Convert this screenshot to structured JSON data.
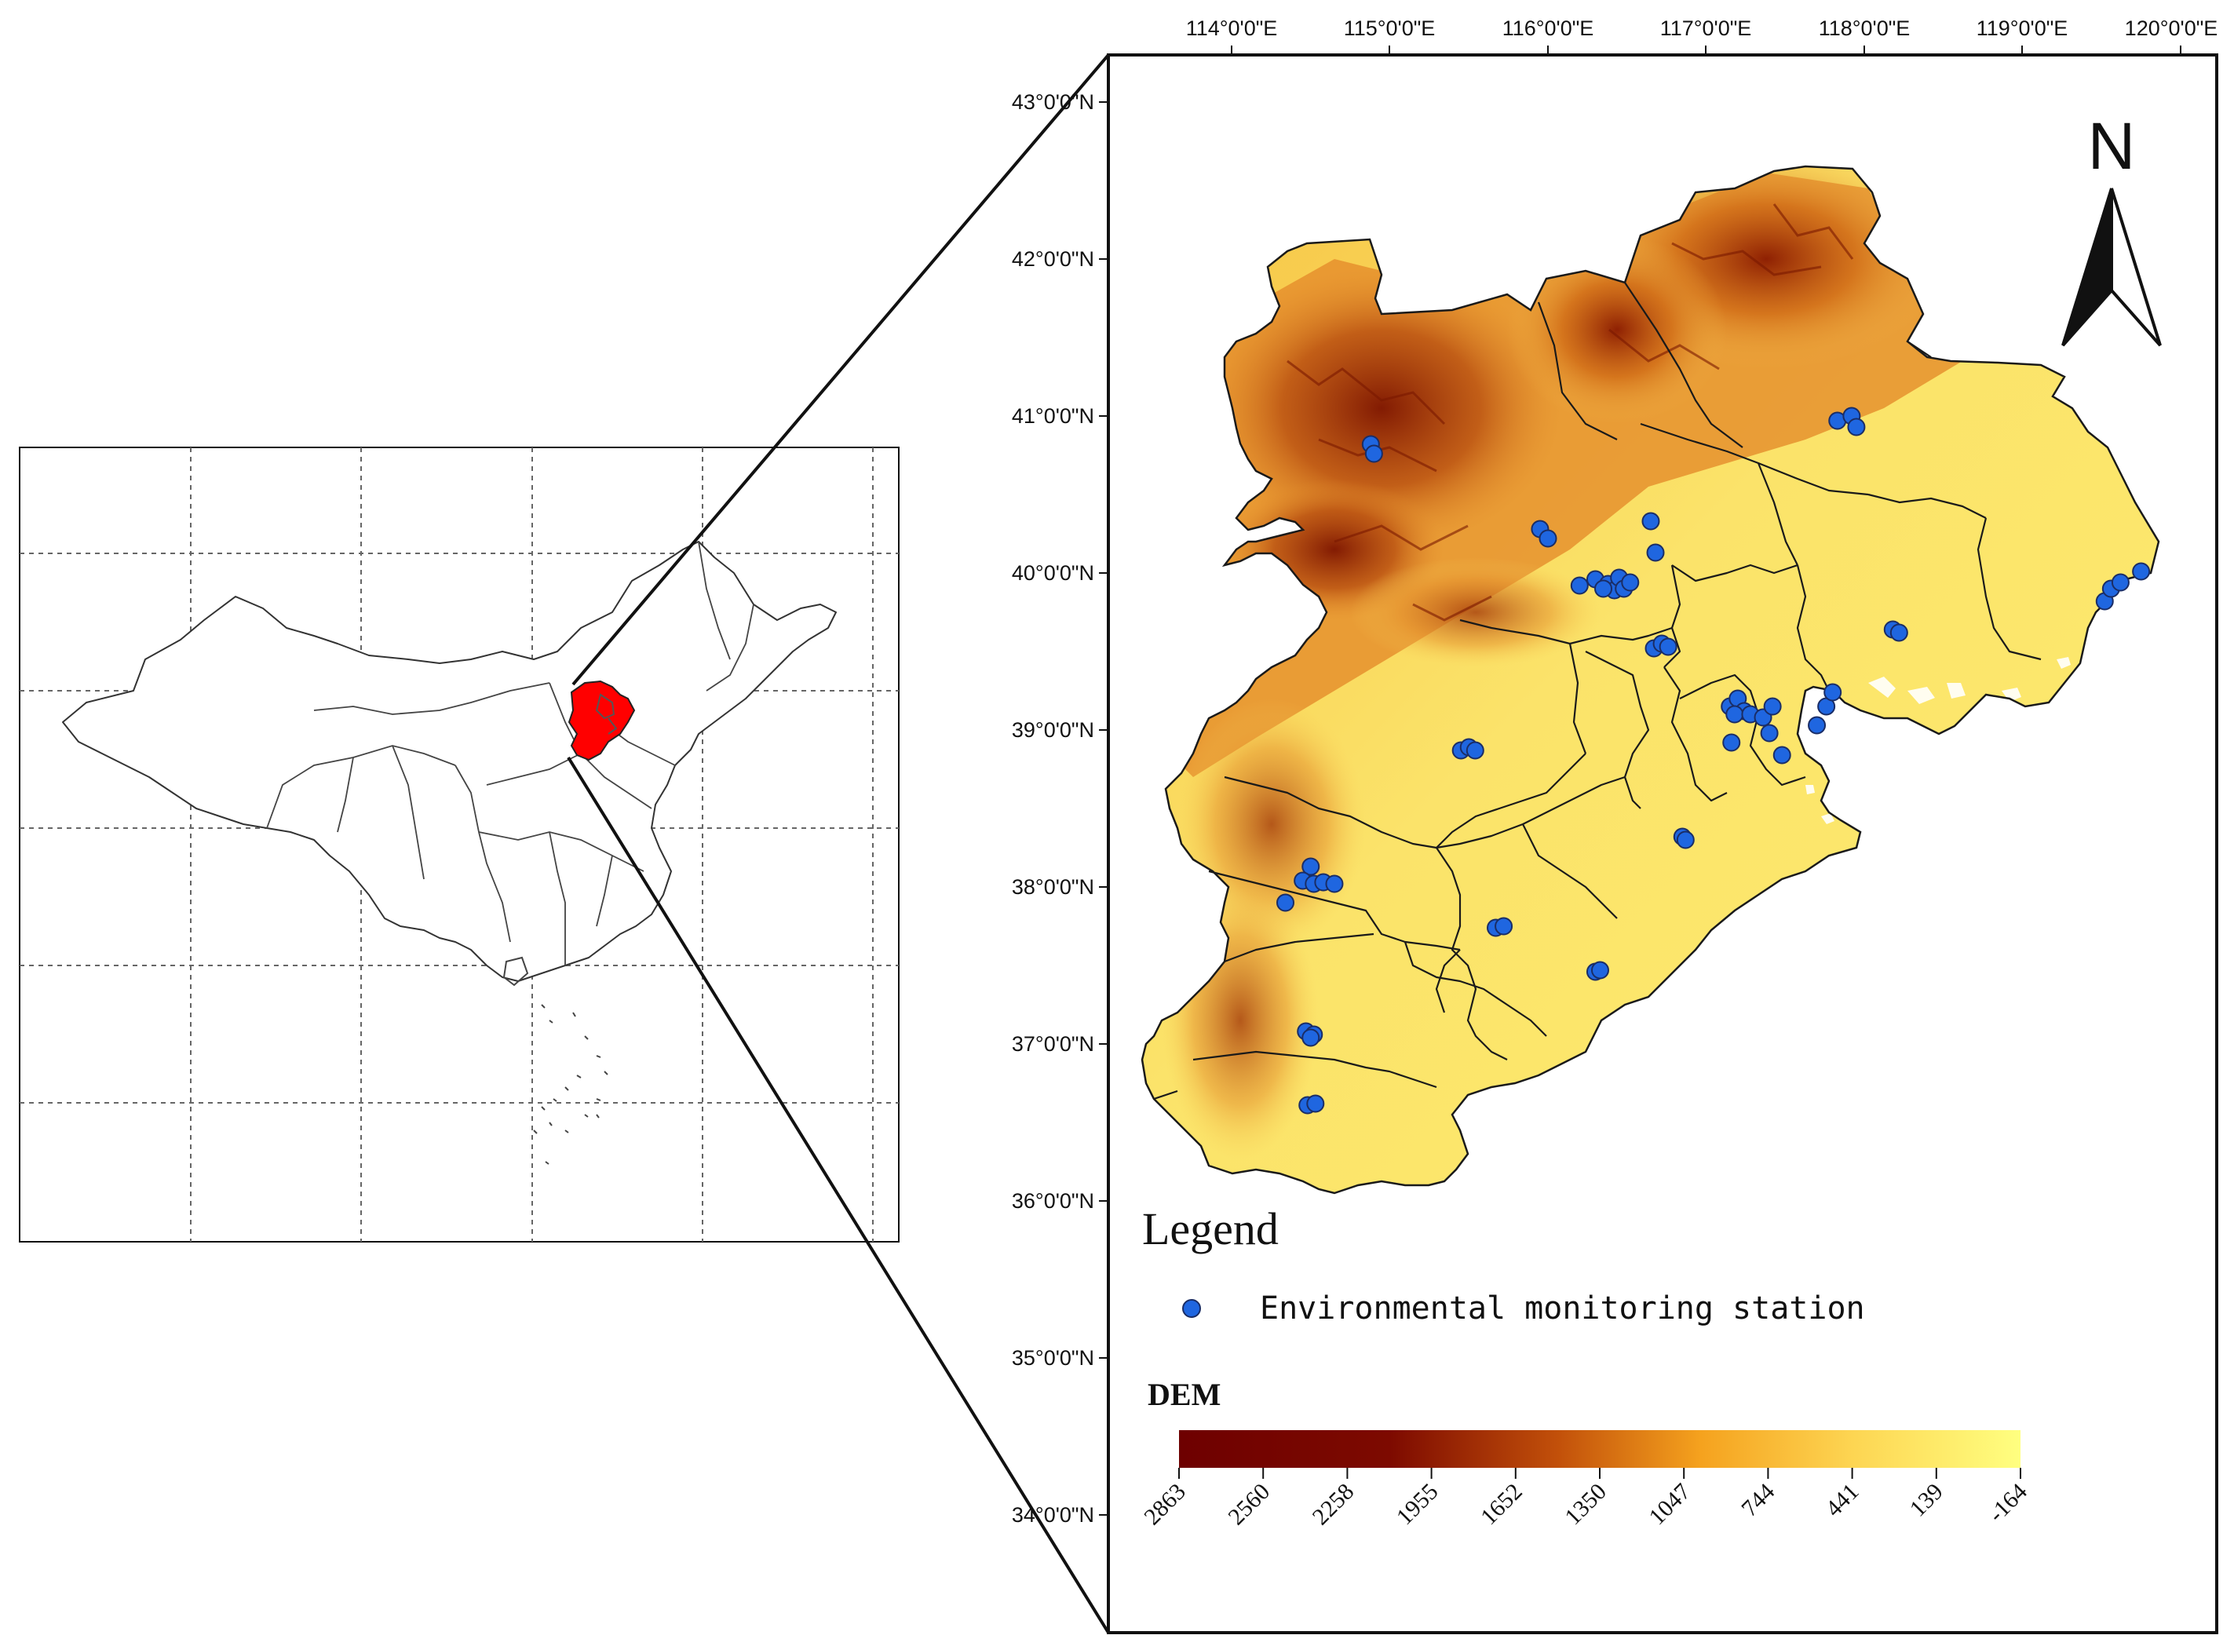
{
  "colors": {
    "region_fill_red": "#ff0000",
    "station_blue": "#1f66e0",
    "frame": "#111111",
    "dem_high": "#6e0000",
    "dem_mid": "#f5a21e",
    "dem_low": "#ffff80"
  },
  "icons": {
    "north_arrow": "north-arrow-icon",
    "station_marker": "station-dot-icon"
  },
  "detail_map": {
    "longitude_labels": [
      "114°0'0\"E",
      "115°0'0\"E",
      "116°0'0\"E",
      "117°0'0\"E",
      "118°0'0\"E",
      "119°0'0\"E",
      "120°0'0\"E"
    ],
    "latitude_labels": [
      "43°0'0\"N",
      "42°0'0\"N",
      "41°0'0\"N",
      "40°0'0\"N",
      "39°0'0\"N",
      "38°0'0\"N",
      "37°0'0\"N",
      "36°0'0\"N",
      "35°0'0\"N",
      "34°0'0\"N"
    ],
    "north_label": "N"
  },
  "legend": {
    "title": "Legend",
    "station_label": "Environmental monitoring station"
  },
  "dem": {
    "title": "DEM",
    "ticks": [
      "2863",
      "2560",
      "2258",
      "1955",
      "1652",
      "1350",
      "1047",
      "744",
      "441",
      "139",
      "-164"
    ]
  },
  "stations": [
    {
      "lon": 114.88,
      "lat": 40.82
    },
    {
      "lon": 114.9,
      "lat": 40.76
    },
    {
      "lon": 115.95,
      "lat": 40.28
    },
    {
      "lon": 116.0,
      "lat": 40.22
    },
    {
      "lon": 116.65,
      "lat": 40.33
    },
    {
      "lon": 116.68,
      "lat": 40.13
    },
    {
      "lon": 116.2,
      "lat": 39.92
    },
    {
      "lon": 116.3,
      "lat": 39.96
    },
    {
      "lon": 116.38,
      "lat": 39.93
    },
    {
      "lon": 116.42,
      "lat": 39.89
    },
    {
      "lon": 116.45,
      "lat": 39.97
    },
    {
      "lon": 116.48,
      "lat": 39.9
    },
    {
      "lon": 116.52,
      "lat": 39.94
    },
    {
      "lon": 116.35,
      "lat": 39.9
    },
    {
      "lon": 116.67,
      "lat": 39.52
    },
    {
      "lon": 116.72,
      "lat": 39.55
    },
    {
      "lon": 116.76,
      "lat": 39.53
    },
    {
      "lon": 117.83,
      "lat": 40.97
    },
    {
      "lon": 117.92,
      "lat": 41.0
    },
    {
      "lon": 117.95,
      "lat": 40.93
    },
    {
      "lon": 119.52,
      "lat": 39.82
    },
    {
      "lon": 119.56,
      "lat": 39.9
    },
    {
      "lon": 119.62,
      "lat": 39.94
    },
    {
      "lon": 119.75,
      "lat": 40.01
    },
    {
      "lon": 118.18,
      "lat": 39.64
    },
    {
      "lon": 118.22,
      "lat": 39.62
    },
    {
      "lon": 117.15,
      "lat": 39.15
    },
    {
      "lon": 117.2,
      "lat": 39.2
    },
    {
      "lon": 117.24,
      "lat": 39.12
    },
    {
      "lon": 117.18,
      "lat": 39.1
    },
    {
      "lon": 117.28,
      "lat": 39.1
    },
    {
      "lon": 117.36,
      "lat": 39.08
    },
    {
      "lon": 117.42,
      "lat": 39.15
    },
    {
      "lon": 117.4,
      "lat": 38.98
    },
    {
      "lon": 117.48,
      "lat": 38.84
    },
    {
      "lon": 117.7,
      "lat": 39.03
    },
    {
      "lon": 117.76,
      "lat": 39.15
    },
    {
      "lon": 117.8,
      "lat": 39.24
    },
    {
      "lon": 117.16,
      "lat": 38.92
    },
    {
      "lon": 115.45,
      "lat": 38.87
    },
    {
      "lon": 115.5,
      "lat": 38.89
    },
    {
      "lon": 115.54,
      "lat": 38.87
    },
    {
      "lon": 116.85,
      "lat": 38.32
    },
    {
      "lon": 116.87,
      "lat": 38.3
    },
    {
      "lon": 114.5,
      "lat": 38.13
    },
    {
      "lon": 114.45,
      "lat": 38.04
    },
    {
      "lon": 114.52,
      "lat": 38.02
    },
    {
      "lon": 114.58,
      "lat": 38.03
    },
    {
      "lon": 114.65,
      "lat": 38.02
    },
    {
      "lon": 114.34,
      "lat": 37.9
    },
    {
      "lon": 115.67,
      "lat": 37.74
    },
    {
      "lon": 115.72,
      "lat": 37.75
    },
    {
      "lon": 116.3,
      "lat": 37.46
    },
    {
      "lon": 116.33,
      "lat": 37.47
    },
    {
      "lon": 114.47,
      "lat": 37.08
    },
    {
      "lon": 114.52,
      "lat": 37.06
    },
    {
      "lon": 114.5,
      "lat": 37.04
    },
    {
      "lon": 114.48,
      "lat": 36.61
    },
    {
      "lon": 114.53,
      "lat": 36.62
    }
  ]
}
